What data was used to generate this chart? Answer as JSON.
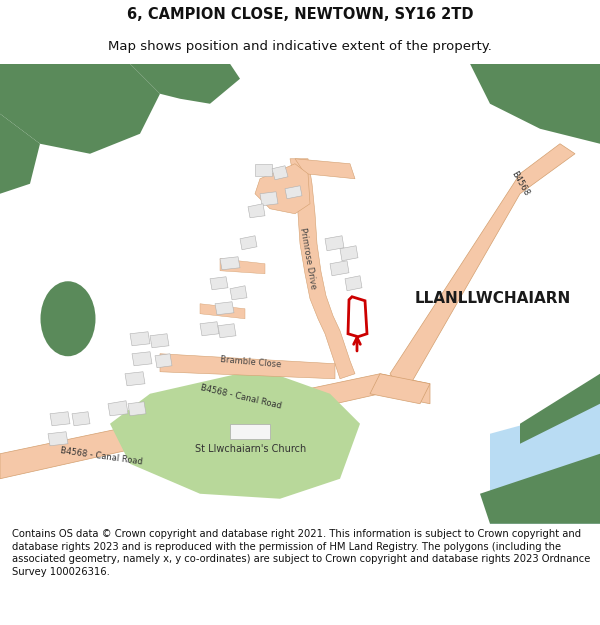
{
  "title": "6, CAMPION CLOSE, NEWTOWN, SY16 2TD",
  "subtitle": "Map shows position and indicative extent of the property.",
  "footer": "Contains OS data © Crown copyright and database right 2021. This information is subject to Crown copyright and database rights 2023 and is reproduced with the permission of HM Land Registry. The polygons (including the associated geometry, namely x, y co-ordinates) are subject to Crown copyright and database rights 2023 Ordnance Survey 100026316.",
  "bg_color": "#ffffff",
  "map_bg": "#ffffff",
  "road_color": "#f5c8a8",
  "road_outline_color": "#d4a070",
  "green_dark": "#5a8a5a",
  "green_light": "#b8d89a",
  "building_color": "#e8e8e8",
  "building_outline": "#b0b0b0",
  "blue_water": "#a8d4f0",
  "highlight_red": "#cc0000",
  "title_fontsize": 10.5,
  "subtitle_fontsize": 9.5,
  "footer_fontsize": 7.2
}
